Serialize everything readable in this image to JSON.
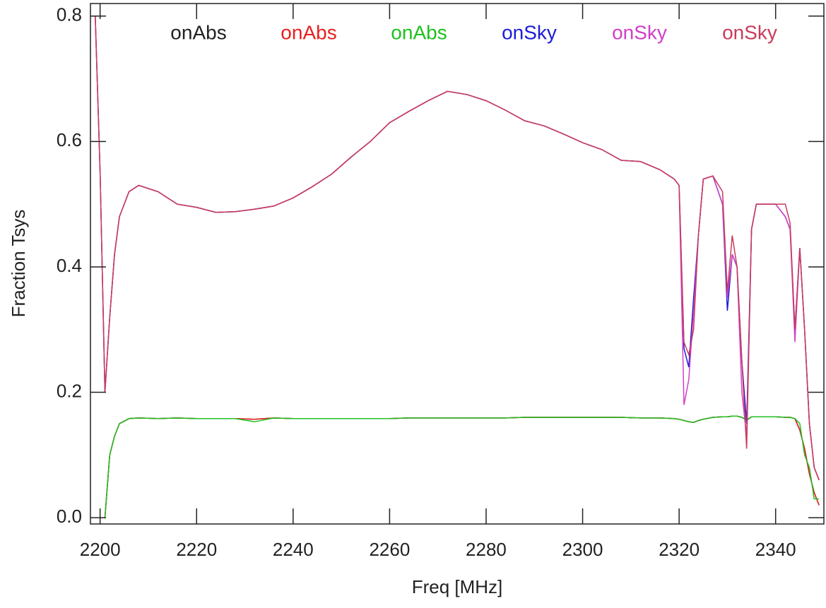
{
  "chart_data": {
    "type": "line",
    "xlabel": "Freq [MHz]",
    "ylabel": "Fraction Tsys",
    "xlim": [
      2198,
      2350
    ],
    "ylim": [
      -0.01,
      0.82
    ],
    "xticks": [
      2200,
      2220,
      2240,
      2260,
      2280,
      2300,
      2320,
      2340
    ],
    "yticks": [
      {
        "value": 0,
        "label": "0.0"
      },
      0.2,
      0.4,
      0.6,
      0.8
    ],
    "x": [
      2199,
      2200,
      2201,
      2202,
      2203,
      2204,
      2206,
      2208,
      2212,
      2216,
      2220,
      2224,
      2228,
      2232,
      2236,
      2240,
      2244,
      2248,
      2252,
      2256,
      2260,
      2264,
      2268,
      2272,
      2276,
      2280,
      2284,
      2288,
      2292,
      2296,
      2300,
      2304,
      2308,
      2312,
      2316,
      2319,
      2320,
      2321,
      2322,
      2323,
      2324,
      2325,
      2327,
      2329,
      2330,
      2331,
      2332,
      2333,
      2334,
      2335,
      2336,
      2338,
      2340,
      2342,
      2343,
      2344,
      2345,
      2346,
      2347,
      2348,
      2349
    ],
    "series": [
      {
        "name": "onAbs",
        "color": "#222222",
        "values": [
          null,
          null,
          0.0,
          0.1,
          0.13,
          0.15,
          0.158,
          0.159,
          0.158,
          0.159,
          0.158,
          0.158,
          0.158,
          0.157,
          0.159,
          0.158,
          0.158,
          0.158,
          0.158,
          0.158,
          0.158,
          0.159,
          0.159,
          0.159,
          0.159,
          0.159,
          0.159,
          0.16,
          0.16,
          0.16,
          0.16,
          0.16,
          0.16,
          0.159,
          0.159,
          0.158,
          0.157,
          0.155,
          0.153,
          0.152,
          0.155,
          0.157,
          0.16,
          0.161,
          0.161,
          0.162,
          0.162,
          0.16,
          0.156,
          0.161,
          0.161,
          0.161,
          0.161,
          0.16,
          0.16,
          0.158,
          0.14,
          0.11,
          0.07,
          0.04,
          0.02
        ]
      },
      {
        "name": "onAbs",
        "color": "#e82020",
        "values": [
          null,
          null,
          0.0,
          0.1,
          0.13,
          0.15,
          0.158,
          0.159,
          0.158,
          0.159,
          0.158,
          0.158,
          0.158,
          0.157,
          0.159,
          0.158,
          0.158,
          0.158,
          0.158,
          0.158,
          0.158,
          0.159,
          0.159,
          0.159,
          0.159,
          0.159,
          0.159,
          0.16,
          0.16,
          0.16,
          0.16,
          0.16,
          0.16,
          0.159,
          0.159,
          0.158,
          0.157,
          0.155,
          0.153,
          0.152,
          0.155,
          0.157,
          0.16,
          0.161,
          0.161,
          0.162,
          0.162,
          0.16,
          0.156,
          0.161,
          0.161,
          0.161,
          0.161,
          0.16,
          0.16,
          0.158,
          0.14,
          0.11,
          0.07,
          0.04,
          0.02
        ]
      },
      {
        "name": "onAbs",
        "color": "#20c020",
        "values": [
          null,
          null,
          0.0,
          0.1,
          0.13,
          0.15,
          0.158,
          0.159,
          0.158,
          0.159,
          0.158,
          0.158,
          0.158,
          0.153,
          0.159,
          0.158,
          0.158,
          0.158,
          0.158,
          0.158,
          0.158,
          0.159,
          0.159,
          0.159,
          0.159,
          0.159,
          0.159,
          0.16,
          0.16,
          0.16,
          0.16,
          0.16,
          0.16,
          0.159,
          0.159,
          0.158,
          0.157,
          0.155,
          0.153,
          0.152,
          0.155,
          0.157,
          0.16,
          0.161,
          0.161,
          0.162,
          0.162,
          0.16,
          0.155,
          0.161,
          0.161,
          0.161,
          0.161,
          0.16,
          0.16,
          0.158,
          0.15,
          0.1,
          0.08,
          0.03,
          0.03
        ]
      },
      {
        "name": "onSky",
        "color": "#1c1cd8",
        "values": [
          0.8,
          0.55,
          0.2,
          0.32,
          0.42,
          0.48,
          0.52,
          0.53,
          0.52,
          0.5,
          0.495,
          0.487,
          0.488,
          0.492,
          0.497,
          0.51,
          0.528,
          0.548,
          0.575,
          0.6,
          0.63,
          0.648,
          0.665,
          0.68,
          0.675,
          0.665,
          0.65,
          0.633,
          0.625,
          0.612,
          0.598,
          0.587,
          0.57,
          0.568,
          0.555,
          0.54,
          0.53,
          0.27,
          0.24,
          0.35,
          0.45,
          0.54,
          0.545,
          0.5,
          0.33,
          0.42,
          0.4,
          0.25,
          0.15,
          0.46,
          0.5,
          0.5,
          0.5,
          0.48,
          0.46,
          0.3,
          0.43,
          0.3,
          0.15,
          0.08,
          0.06
        ]
      },
      {
        "name": "onSky",
        "color": "#d040c8",
        "values": [
          0.8,
          0.55,
          0.2,
          0.32,
          0.42,
          0.48,
          0.52,
          0.53,
          0.52,
          0.5,
          0.495,
          0.487,
          0.488,
          0.492,
          0.497,
          0.51,
          0.528,
          0.548,
          0.575,
          0.6,
          0.63,
          0.648,
          0.665,
          0.68,
          0.675,
          0.665,
          0.65,
          0.633,
          0.625,
          0.612,
          0.598,
          0.587,
          0.57,
          0.568,
          0.555,
          0.54,
          0.53,
          0.18,
          0.22,
          0.33,
          0.45,
          0.54,
          0.545,
          0.5,
          0.35,
          0.42,
          0.4,
          0.2,
          0.13,
          0.46,
          0.5,
          0.5,
          0.5,
          0.48,
          0.46,
          0.28,
          0.43,
          0.3,
          0.15,
          0.08,
          0.06
        ]
      },
      {
        "name": "onSky",
        "color": "#c83c5a",
        "values": [
          0.8,
          0.55,
          0.2,
          0.32,
          0.42,
          0.48,
          0.52,
          0.53,
          0.52,
          0.5,
          0.495,
          0.487,
          0.488,
          0.492,
          0.497,
          0.51,
          0.528,
          0.548,
          0.575,
          0.6,
          0.63,
          0.648,
          0.665,
          0.68,
          0.675,
          0.665,
          0.65,
          0.633,
          0.625,
          0.612,
          0.598,
          0.587,
          0.57,
          0.568,
          0.555,
          0.54,
          0.53,
          0.28,
          0.26,
          0.3,
          0.45,
          0.54,
          0.545,
          0.52,
          0.36,
          0.45,
          0.4,
          0.25,
          0.11,
          0.46,
          0.5,
          0.5,
          0.5,
          0.5,
          0.47,
          0.3,
          0.43,
          0.3,
          0.15,
          0.08,
          0.06
        ]
      }
    ]
  }
}
